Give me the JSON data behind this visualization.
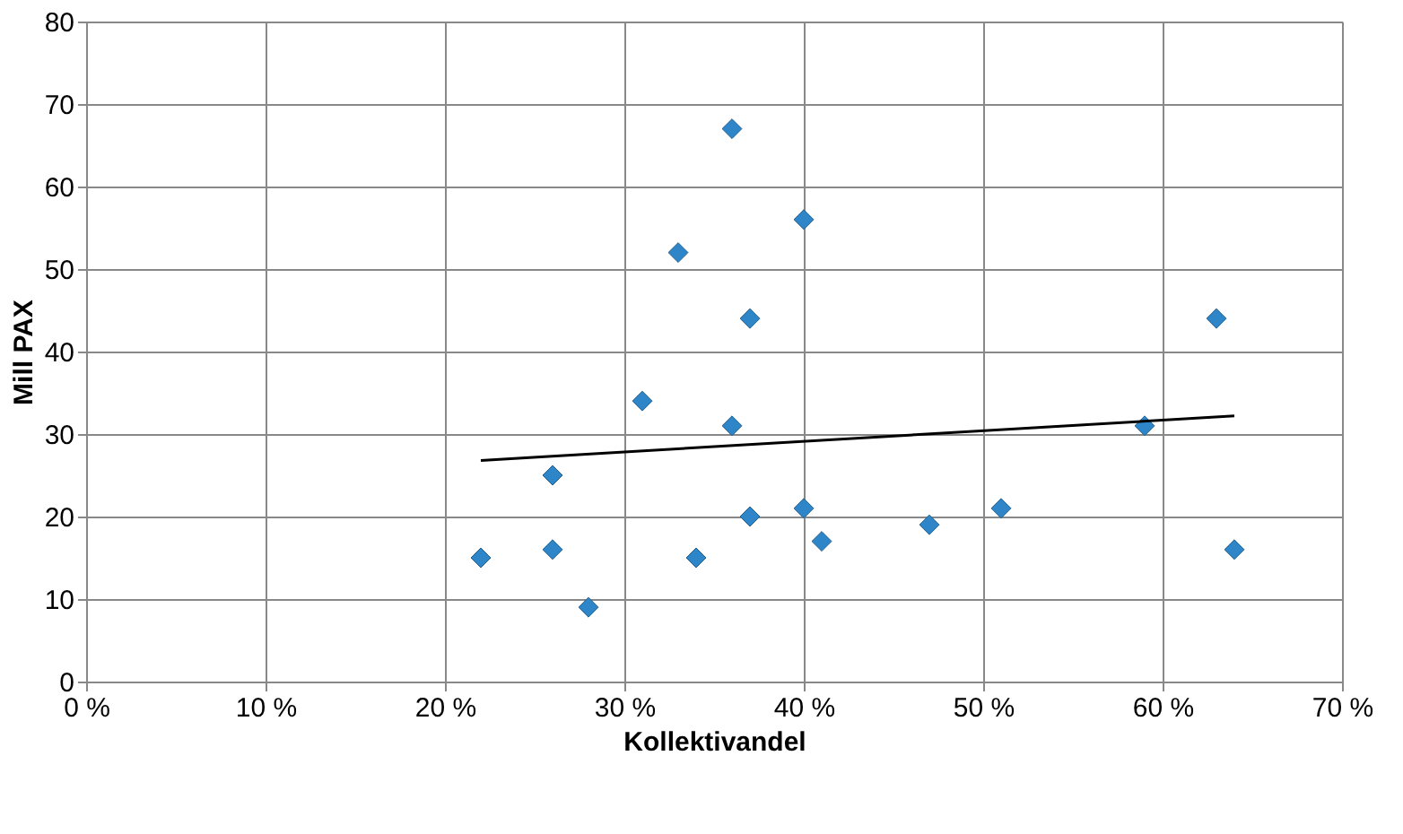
{
  "chart_data": {
    "type": "scatter",
    "xlabel": "Kollektivandel",
    "ylabel": "Mill PAX",
    "xlim": [
      0,
      70
    ],
    "xticks": [
      {
        "value": 0,
        "label": "0 %"
      },
      {
        "value": 10,
        "label": "10 %"
      },
      {
        "value": 20,
        "label": "20 %"
      },
      {
        "value": 30,
        "label": "30 %"
      },
      {
        "value": 40,
        "label": "40 %"
      },
      {
        "value": 50,
        "label": "50 %"
      },
      {
        "value": 60,
        "label": "60 %"
      },
      {
        "value": 70,
        "label": "70 %"
      }
    ],
    "ylim": [
      0,
      80
    ],
    "yticks": [
      0,
      10,
      20,
      30,
      40,
      50,
      60,
      70,
      80
    ],
    "grid": true,
    "marker": "diamond",
    "series": [
      {
        "color": "#2e86c8",
        "x": [
          22,
          26,
          26,
          28,
          31,
          33,
          34,
          36,
          36,
          37,
          37,
          40,
          40,
          41,
          47,
          51,
          59,
          63,
          64
        ],
        "values": [
          15,
          25,
          16,
          9,
          34,
          52,
          15,
          67,
          31,
          44,
          20,
          56,
          21,
          17,
          19,
          21,
          31,
          44,
          16
        ]
      },
      {
        "type": "line",
        "marker": "none",
        "line_style": "solid",
        "color": "#000000",
        "x": [
          22,
          64
        ],
        "values": [
          26.8,
          32.2
        ]
      }
    ]
  }
}
